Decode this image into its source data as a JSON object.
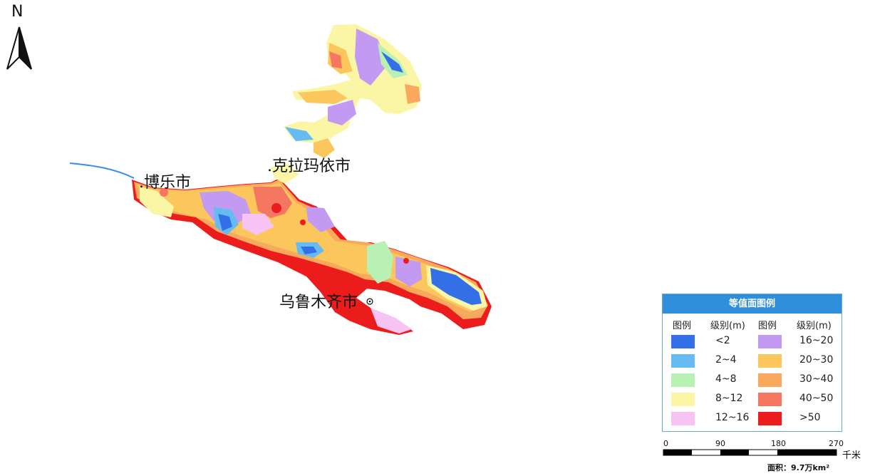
{
  "north": {
    "label": "N"
  },
  "cities": [
    {
      "name": ".克拉玛依市"
    },
    {
      "name": ".博乐市"
    },
    {
      "name": "乌鲁木齐市"
    }
  ],
  "legend": {
    "title": "等值面图例",
    "col_symbol": "图例",
    "col_level": "级别(m)",
    "items": [
      {
        "level": "<2",
        "color": "#3370e8"
      },
      {
        "level": "2~4",
        "color": "#66bbf2"
      },
      {
        "level": "4~8",
        "color": "#b9f0b3"
      },
      {
        "level": "8~12",
        "color": "#fbf6a6"
      },
      {
        "level": "12~16",
        "color": "#f6c3f4"
      },
      {
        "level": "16~20",
        "color": "#c39af2"
      },
      {
        "level": "20~30",
        "color": "#fbc75c"
      },
      {
        "level": "30~40",
        "color": "#f9a95d"
      },
      {
        "level": "40~50",
        "color": "#f57762"
      },
      {
        "level": ">50",
        "color": "#ec1c1c"
      }
    ]
  },
  "scale": {
    "ticks": [
      "0",
      "90",
      "180",
      "270"
    ],
    "unit": "千米"
  },
  "area_note": "面积：9.7万km²"
}
